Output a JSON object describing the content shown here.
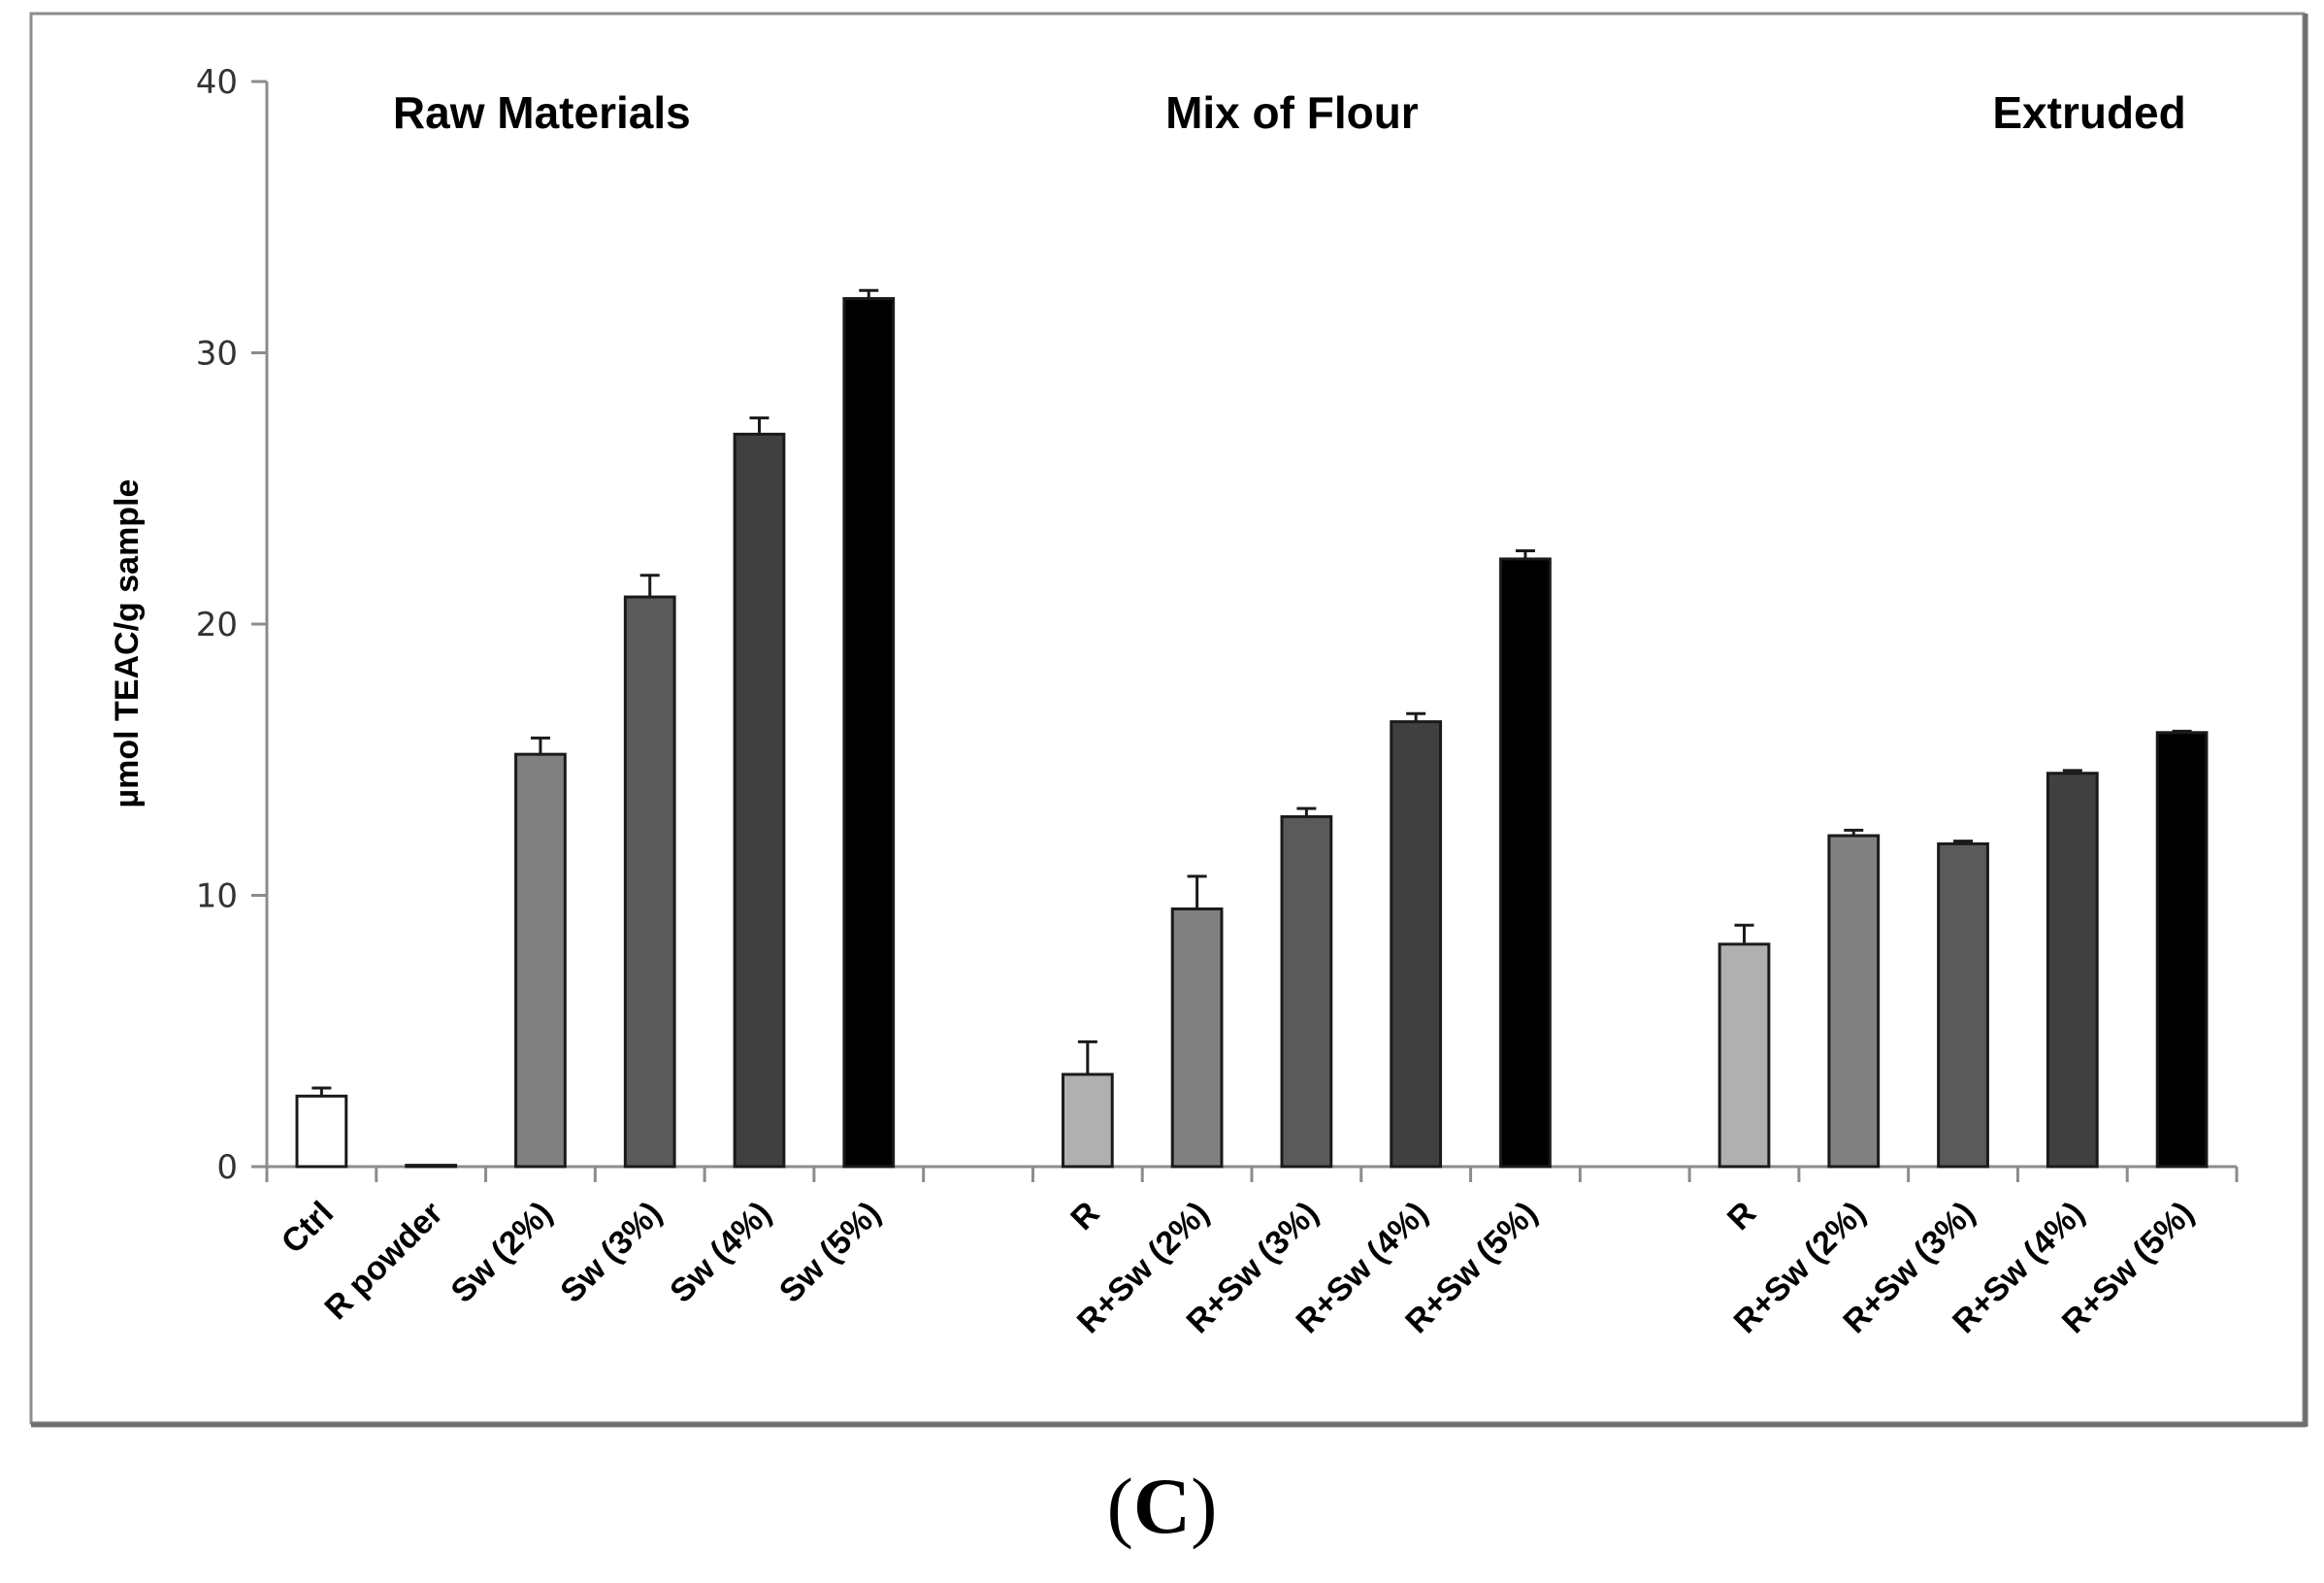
{
  "chart_data": {
    "type": "bar",
    "title": "",
    "xlabel": "",
    "ylabel": "µmol TEAC/g sample",
    "ylim": [
      0,
      40
    ],
    "yticks": [
      0,
      10,
      20,
      30,
      40
    ],
    "groups": [
      {
        "name": "Raw Materials",
        "categories": [
          "Ctrl",
          "R powder",
          "Sw (2%)",
          "Sw (3%)",
          "Sw (4%)",
          "Sw (5%)"
        ],
        "values": [
          2.6,
          0.05,
          15.2,
          21.0,
          27.0,
          32.0
        ],
        "errors": [
          0.3,
          0.0,
          0.6,
          0.8,
          0.6,
          0.3
        ],
        "colors": [
          "#ffffff",
          "#ffffff",
          "#808080",
          "#5a5a5a",
          "#404040",
          "#000000"
        ]
      },
      {
        "name": "Mix of Flour",
        "categories": [
          "R",
          "R+Sw (2%)",
          "R+Sw (3%)",
          "R+Sw (4%)",
          "R+Sw (5%)"
        ],
        "values": [
          3.4,
          9.5,
          12.9,
          16.4,
          22.4
        ],
        "errors": [
          1.2,
          1.2,
          0.3,
          0.3,
          0.3
        ],
        "colors": [
          "#b0b0b0",
          "#808080",
          "#5a5a5a",
          "#404040",
          "#000000"
        ]
      },
      {
        "name": "Extruded",
        "categories": [
          "R",
          "R+Sw (2%)",
          "R+Sw (3%)",
          "R+Sw (4%)",
          "R+Sw (5%)"
        ],
        "values": [
          8.2,
          12.2,
          11.9,
          14.5,
          16.0
        ],
        "errors": [
          0.7,
          0.2,
          0.1,
          0.1,
          0.05
        ],
        "colors": [
          "#b0b0b0",
          "#808080",
          "#5a5a5a",
          "#404040",
          "#000000"
        ]
      }
    ],
    "grid": false,
    "legend": "none"
  },
  "panel_label": {
    "open": "(",
    "letter": "C",
    "close": ")"
  }
}
